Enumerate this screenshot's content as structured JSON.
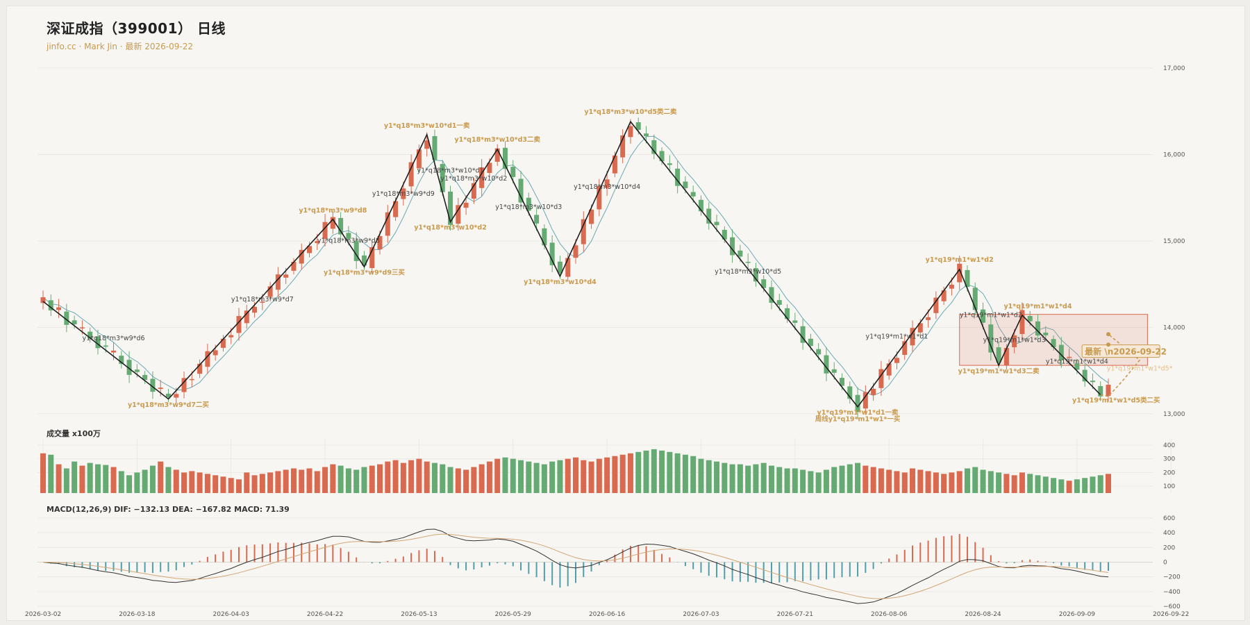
{
  "header": {
    "title": "深证成指（399001） 日线",
    "subtitle": "jinfo.cc · Mark Jin · 最新 2026-09-22"
  },
  "colors": {
    "up": "#d9694f",
    "down": "#66aa73",
    "zigzag": "#1f1f1f",
    "ma": "#6aa9b5",
    "label_gold": "#c99a4e",
    "label_dark": "#444444",
    "dea": "#d4a574",
    "macd_down": "#4f9fac"
  },
  "chart_data": [
    {
      "type": "candlestick",
      "name": "price",
      "ylim": [
        12950,
        17000
      ],
      "yticks": [
        13000,
        14000,
        15000,
        16000,
        17000
      ],
      "ytick_labels": [
        "13,000",
        "14,000",
        "15,000",
        "16,000",
        "17,000"
      ],
      "xticks": [
        0,
        12,
        24,
        36,
        48,
        60,
        72,
        84,
        96,
        108,
        120,
        132,
        144
      ],
      "xtick_labels": [
        "2026-03-02",
        "2026-03-18",
        "2026-04-03",
        "2026-04-22",
        "2026-05-13",
        "2026-05-29",
        "2026-06-16",
        "2026-07-03",
        "2026-07-21",
        "2026-08-06",
        "2026-08-24",
        "2026-09-09",
        "2026-09-22"
      ],
      "pivots": [
        {
          "i": 0,
          "y": 14300
        },
        {
          "i": 16,
          "y": 13170
        },
        {
          "i": 37,
          "y": 15250
        },
        {
          "i": 41,
          "y": 14700
        },
        {
          "i": 49,
          "y": 16230
        },
        {
          "i": 52,
          "y": 15220
        },
        {
          "i": 58,
          "y": 16060
        },
        {
          "i": 66,
          "y": 14590
        },
        {
          "i": 75,
          "y": 16380
        },
        {
          "i": 104,
          "y": 13080
        },
        {
          "i": 117,
          "y": 14670
        },
        {
          "i": 122,
          "y": 13560
        },
        {
          "i": 125,
          "y": 14140
        },
        {
          "i": 135,
          "y": 13220
        }
      ],
      "candle_noise": [
        0.32,
        -0.22,
        0.48,
        -0.4,
        0.12,
        0.35,
        -0.05,
        -0.31,
        0.27,
        0.44,
        -0.12,
        -0.49,
        0.2,
        0.06,
        -0.38,
        0.41,
        0.15,
        -0.27,
        0.3,
        -0.44,
        0.08,
        0.39,
        -0.2,
        0.03,
        -0.35,
        0.46,
        0.22,
        -0.15,
        -0.42,
        0.11,
        0.37,
        -0.3,
        0.02,
        0.28,
        -0.08,
        -0.36,
        0.45,
        0.17,
        -0.25,
        0.33,
        -0.47,
        0.1,
        0.24,
        -0.18,
        0.38,
        -0.03,
        -0.33,
        0.42,
        0.13,
        -0.45,
        0.29,
        0.05,
        -0.23,
        0.36,
        -0.39,
        0.19,
        0.47,
        -0.11,
        0.07,
        -0.29,
        0.31,
        -0.43,
        0.16,
        0.4,
        -0.06,
        -0.37,
        0.23,
        0.09,
        -0.26,
        0.43,
        -0.16,
        0.34,
        -0.48,
        0.04,
        0.26,
        -0.34,
        0.12,
        0.39,
        -0.21,
        -0.02,
        0.45,
        -0.41,
        0.18,
        0.3,
        -0.09,
        -0.28,
        0.36,
        0.01,
        -0.44,
        0.21,
        0.49,
        -0.19,
        0.06,
        -0.32,
        0.28,
        -0.05,
        0.41,
        -0.37,
        0.14,
        0.25,
        -0.46,
        0.35,
        0.1,
        -0.14,
        -0.4,
        0.32,
        -0.24,
        0.46,
        0.08,
        -0.3,
        0.17,
        0.38,
        -0.07,
        -0.43,
        0.27,
        0.02,
        -0.36,
        0.44,
        0.13,
        -0.17,
        0.33,
        -0.49,
        0.22,
        0.05,
        -0.27,
        0.4,
        0.15,
        -0.34,
        0.29,
        -0.01,
        -0.42,
        0.47,
        0.09,
        -0.2,
        0.36,
        -0.13,
        0.24
      ],
      "labels": [
        {
          "text": "y1*q18*m3*w9*d6",
          "i": 9,
          "y": 13850,
          "color": "dark"
        },
        {
          "text": "y1*q18*m3*w9*d7二买",
          "i": 16,
          "y": 13080,
          "color": "gold"
        },
        {
          "text": "y1*q18*m3*w9*d7",
          "i": 28,
          "y": 14300,
          "color": "dark"
        },
        {
          "text": "y1*q18*m3*w9*d8",
          "i": 37,
          "y": 15330,
          "color": "gold"
        },
        {
          "text": "y1*q18*m3*w9*d8",
          "i": 39,
          "y": 14980,
          "color": "dark"
        },
        {
          "text": "y1*q18*m3*w9*d9三买",
          "i": 41,
          "y": 14610,
          "color": "gold"
        },
        {
          "text": "y1*q18*m3*w9*d9",
          "i": 46,
          "y": 15520,
          "color": "dark"
        },
        {
          "text": "y1*q18*m3*w10*d1一卖",
          "i": 49,
          "y": 16310,
          "color": "gold"
        },
        {
          "text": "y1*q18*m3*w10*d1",
          "i": 52,
          "y": 15790,
          "color": "dark"
        },
        {
          "text": "y1*q18*m3*w10*d2",
          "i": 55,
          "y": 15700,
          "color": "dark"
        },
        {
          "text": "y1*q18*m3*w10*d2",
          "i": 52,
          "y": 15130,
          "color": "gold"
        },
        {
          "text": "y1*q18*m3*w10*d3二卖",
          "i": 58,
          "y": 16150,
          "color": "gold"
        },
        {
          "text": "y1*q18*m3*w10*d3",
          "i": 62,
          "y": 15370,
          "color": "dark"
        },
        {
          "text": "y1*q18*m3*w10*d4",
          "i": 66,
          "y": 14500,
          "color": "gold"
        },
        {
          "text": "y1*q18*m3*w10*d4",
          "i": 72,
          "y": 15600,
          "color": "dark"
        },
        {
          "text": "y1*q18*m3*w10*d5类二卖",
          "i": 75,
          "y": 16470,
          "color": "gold"
        },
        {
          "text": "y1*q18*m3*w10*d5",
          "i": 90,
          "y": 14620,
          "color": "dark"
        },
        {
          "text": "y1*q19*m1*w1*d1",
          "i": 109,
          "y": 13870,
          "color": "dark"
        },
        {
          "text": "y1*q19*m1*w1*d1一卖",
          "i": 104,
          "y": 12990,
          "color": "gold"
        },
        {
          "text": "周线y1*q19*m1*w1*一买",
          "i": 104,
          "y": 12915,
          "color": "gold"
        },
        {
          "text": "y1*q19*m1*w1*d2",
          "i": 117,
          "y": 14760,
          "color": "gold"
        },
        {
          "text": "y1*q19*m1*w1*d2",
          "i": 121,
          "y": 14120,
          "color": "dark"
        },
        {
          "text": "y1*q19*m1*w1*d3二卖",
          "i": 122,
          "y": 13470,
          "color": "gold"
        },
        {
          "text": "y1*q19*m1*w1*d3",
          "i": 124,
          "y": 13830,
          "color": "dark"
        },
        {
          "text": "y1*q19*m1*w1*d4",
          "i": 127,
          "y": 14220,
          "color": "gold"
        },
        {
          "text": "y1*q19*m1*w1*d4",
          "i": 132,
          "y": 13580,
          "color": "dark"
        },
        {
          "text": "y1*q19*m1*w1*d5类二买",
          "i": 137,
          "y": 13130,
          "color": "gold"
        },
        {
          "text": "y1*q19*m1*w1*d5*",
          "i": 140,
          "y": 13500,
          "color": "goldlight"
        }
      ],
      "box": {
        "i0": 117,
        "i1": 141,
        "y0": 13560,
        "y1": 14150
      },
      "latest_tag": {
        "text": "最新 \\n2026-09-22",
        "i": 133,
        "y": 13700
      }
    },
    {
      "type": "bar",
      "name": "volume",
      "title": "成交量 x100万",
      "ylim": [
        50,
        420
      ],
      "yticks": [
        100,
        200,
        300,
        400
      ],
      "base": [
        340,
        330,
        260,
        230,
        280,
        250,
        270,
        260,
        255,
        240,
        210,
        180,
        200,
        220,
        250,
        280,
        240,
        220,
        200,
        210,
        200,
        190,
        180,
        170,
        160,
        150,
        200,
        180,
        190,
        200,
        210,
        220,
        230,
        220,
        230,
        210,
        240,
        260,
        250,
        230,
        220,
        240,
        250,
        260,
        280,
        290,
        270,
        290,
        300,
        280,
        270,
        260,
        240,
        230,
        220,
        240,
        260,
        280,
        300,
        310,
        300,
        290,
        280,
        270,
        260,
        280,
        290,
        300,
        310,
        290,
        280,
        300,
        310,
        320,
        330,
        340,
        350,
        360,
        370,
        360,
        350,
        340,
        330,
        320,
        300,
        290,
        280,
        270,
        260,
        260,
        250,
        260,
        270,
        250,
        240,
        230,
        230,
        220,
        210,
        200,
        220,
        240,
        250,
        260,
        270,
        250,
        240,
        230,
        220,
        210,
        200,
        230,
        220,
        210,
        200,
        190,
        200,
        210,
        230,
        240,
        220,
        210,
        200,
        190,
        180,
        200,
        190,
        180,
        170,
        160,
        150,
        140,
        150,
        160,
        170,
        180,
        190,
        200,
        195,
        190,
        195,
        200
      ]
    },
    {
      "type": "line",
      "name": "macd",
      "title": "MACD(12,26,9) DIF: −132.13 DEA: −167.82 MACD: 71.39",
      "ylim": [
        -600,
        600
      ],
      "yticks": [
        -600,
        -400,
        -200,
        0,
        200,
        400,
        600
      ],
      "ytick_labels": [
        "−600",
        "−400",
        "−200",
        "0",
        "200",
        "400",
        "600"
      ],
      "series": [
        {
          "key": "dif"
        },
        {
          "key": "dea"
        },
        {
          "key": "macd"
        }
      ]
    }
  ]
}
